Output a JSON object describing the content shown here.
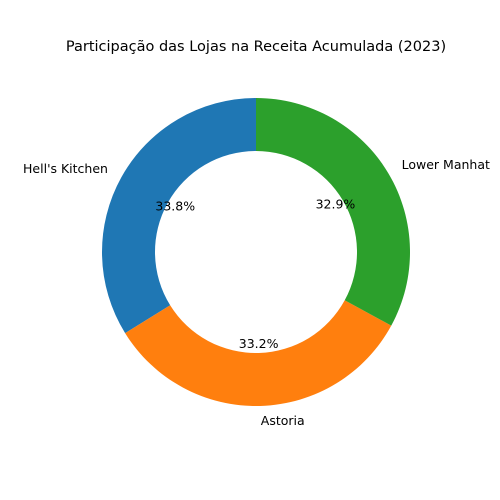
{
  "chart_data": {
    "type": "pie",
    "variant": "donut",
    "title": "Participação das Lojas na Receita Acumulada (2023)",
    "categories": [
      "Hell's Kitchen",
      "Astoria",
      "Lower Manhattan"
    ],
    "visible_labels": [
      "Hell's Kitchen",
      "Astoria",
      "Lower Manhat"
    ],
    "values": [
      33.8,
      33.2,
      32.9
    ],
    "percent_labels": [
      "33.8%",
      "33.2%",
      "32.9%"
    ],
    "colors": [
      "#1f77b4",
      "#ff7f0e",
      "#2ca02c"
    ],
    "start_angle_deg": 90,
    "direction": "counterclockwise",
    "legend": "none"
  }
}
